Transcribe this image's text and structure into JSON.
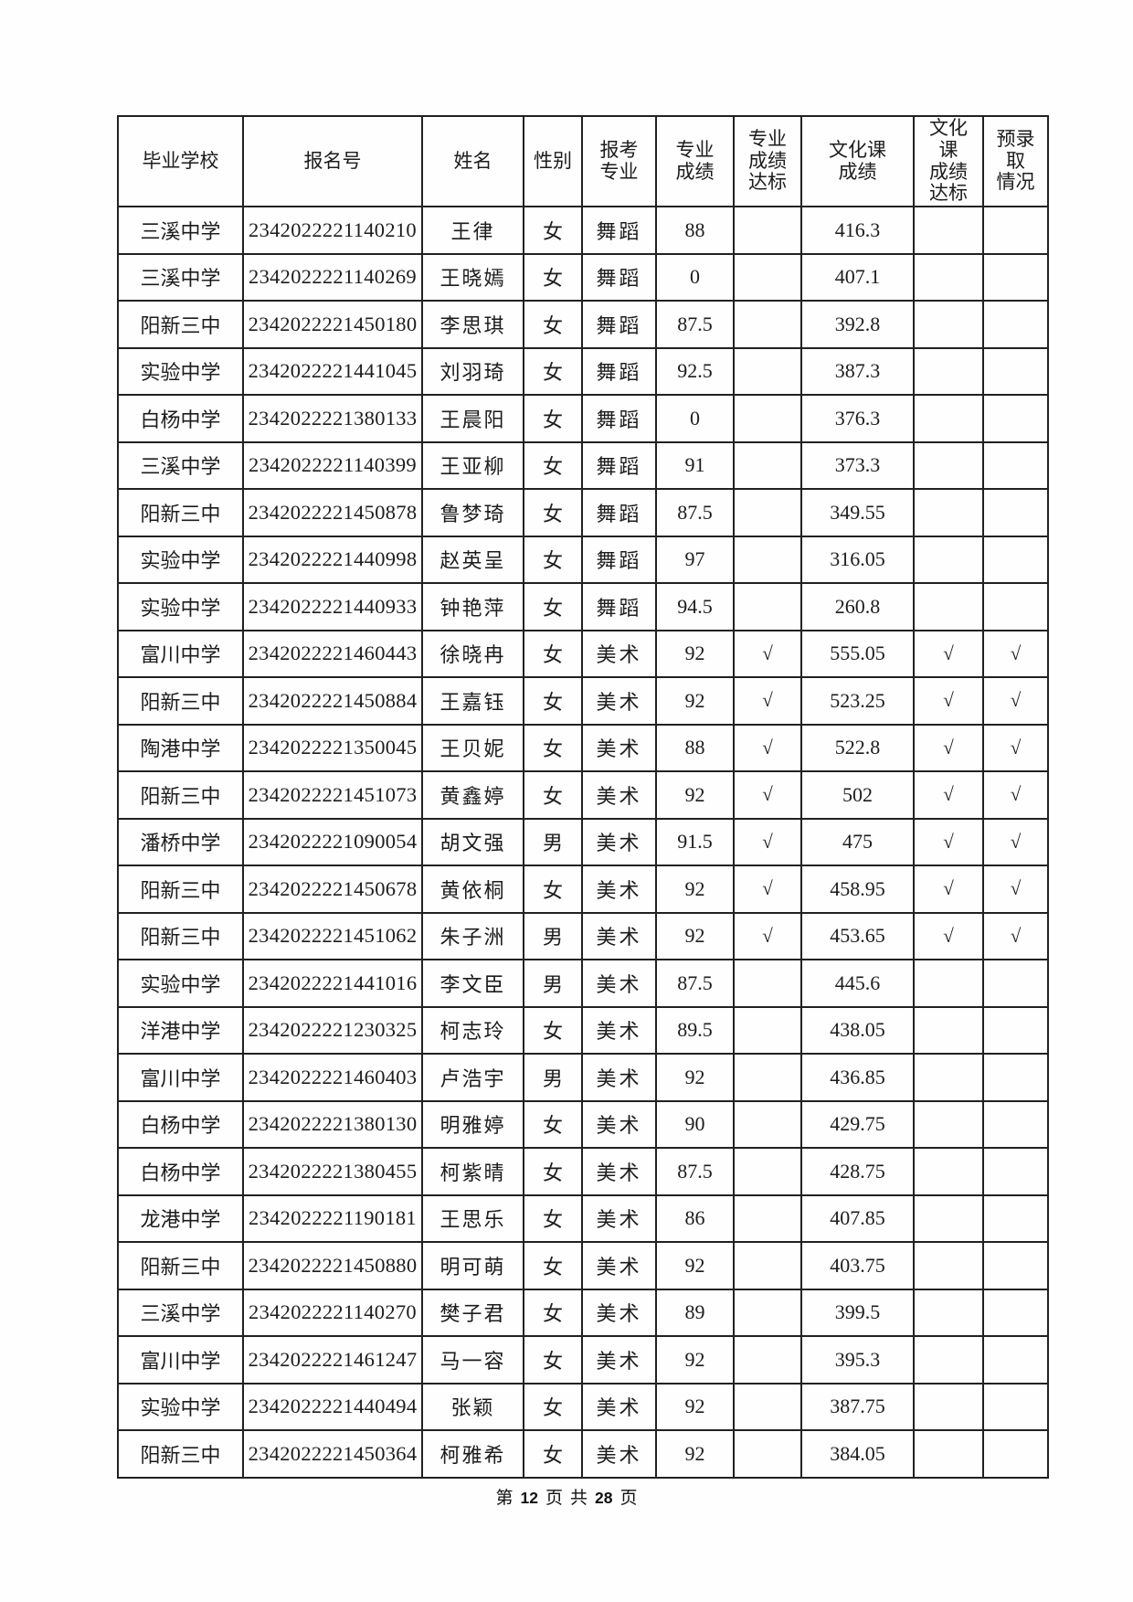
{
  "table": {
    "columns": [
      "毕业学校",
      "报名号",
      "姓名",
      "性别",
      "报考\n专业",
      "专业\n成绩",
      "专业\n成绩\n达标",
      "文化课\n成绩",
      "文化\n课\n成绩\n达标",
      "预录\n取\n情况"
    ],
    "rows": [
      [
        "三溪中学",
        "2342022221140210",
        "王律",
        "女",
        "舞蹈",
        "88",
        "",
        "416.3",
        "",
        ""
      ],
      [
        "三溪中学",
        "2342022221140269",
        "王晓嫣",
        "女",
        "舞蹈",
        "0",
        "",
        "407.1",
        "",
        ""
      ],
      [
        "阳新三中",
        "2342022221450180",
        "李思琪",
        "女",
        "舞蹈",
        "87.5",
        "",
        "392.8",
        "",
        ""
      ],
      [
        "实验中学",
        "2342022221441045",
        "刘羽琦",
        "女",
        "舞蹈",
        "92.5",
        "",
        "387.3",
        "",
        ""
      ],
      [
        "白杨中学",
        "2342022221380133",
        "王晨阳",
        "女",
        "舞蹈",
        "0",
        "",
        "376.3",
        "",
        ""
      ],
      [
        "三溪中学",
        "2342022221140399",
        "王亚柳",
        "女",
        "舞蹈",
        "91",
        "",
        "373.3",
        "",
        ""
      ],
      [
        "阳新三中",
        "2342022221450878",
        "鲁梦琦",
        "女",
        "舞蹈",
        "87.5",
        "",
        "349.55",
        "",
        ""
      ],
      [
        "实验中学",
        "2342022221440998",
        "赵英呈",
        "女",
        "舞蹈",
        "97",
        "",
        "316.05",
        "",
        ""
      ],
      [
        "实验中学",
        "2342022221440933",
        "钟艳萍",
        "女",
        "舞蹈",
        "94.5",
        "",
        "260.8",
        "",
        ""
      ],
      [
        "富川中学",
        "2342022221460443",
        "徐晓冉",
        "女",
        "美术",
        "92",
        "√",
        "555.05",
        "√",
        "√"
      ],
      [
        "阳新三中",
        "2342022221450884",
        "王嘉钰",
        "女",
        "美术",
        "92",
        "√",
        "523.25",
        "√",
        "√"
      ],
      [
        "陶港中学",
        "2342022221350045",
        "王贝妮",
        "女",
        "美术",
        "88",
        "√",
        "522.8",
        "√",
        "√"
      ],
      [
        "阳新三中",
        "2342022221451073",
        "黄鑫婷",
        "女",
        "美术",
        "92",
        "√",
        "502",
        "√",
        "√"
      ],
      [
        "潘桥中学",
        "2342022221090054",
        "胡文强",
        "男",
        "美术",
        "91.5",
        "√",
        "475",
        "√",
        "√"
      ],
      [
        "阳新三中",
        "2342022221450678",
        "黄依桐",
        "女",
        "美术",
        "92",
        "√",
        "458.95",
        "√",
        "√"
      ],
      [
        "阳新三中",
        "2342022221451062",
        "朱子洲",
        "男",
        "美术",
        "92",
        "√",
        "453.65",
        "√",
        "√"
      ],
      [
        "实验中学",
        "2342022221441016",
        "李文臣",
        "男",
        "美术",
        "87.5",
        "",
        "445.6",
        "",
        ""
      ],
      [
        "洋港中学",
        "2342022221230325",
        "柯志玲",
        "女",
        "美术",
        "89.5",
        "",
        "438.05",
        "",
        ""
      ],
      [
        "富川中学",
        "2342022221460403",
        "卢浩宇",
        "男",
        "美术",
        "92",
        "",
        "436.85",
        "",
        ""
      ],
      [
        "白杨中学",
        "2342022221380130",
        "明雅婷",
        "女",
        "美术",
        "90",
        "",
        "429.75",
        "",
        ""
      ],
      [
        "白杨中学",
        "2342022221380455",
        "柯紫晴",
        "女",
        "美术",
        "87.5",
        "",
        "428.75",
        "",
        ""
      ],
      [
        "龙港中学",
        "2342022221190181",
        "王思乐",
        "女",
        "美术",
        "86",
        "",
        "407.85",
        "",
        ""
      ],
      [
        "阳新三中",
        "2342022221450880",
        "明可萌",
        "女",
        "美术",
        "92",
        "",
        "403.75",
        "",
        ""
      ],
      [
        "三溪中学",
        "2342022221140270",
        "樊子君",
        "女",
        "美术",
        "89",
        "",
        "399.5",
        "",
        ""
      ],
      [
        "富川中学",
        "2342022221461247",
        "马一容",
        "女",
        "美术",
        "92",
        "",
        "395.3",
        "",
        ""
      ],
      [
        "实验中学",
        "2342022221440494",
        "张颖",
        "女",
        "美术",
        "92",
        "",
        "387.75",
        "",
        ""
      ],
      [
        "阳新三中",
        "2342022221450364",
        "柯雅希",
        "女",
        "美术",
        "92",
        "",
        "384.05",
        "",
        ""
      ]
    ]
  },
  "footer": {
    "label_di": "第",
    "page_number": "12",
    "label_ye1": "页",
    "label_gong": "共",
    "total_pages": "28",
    "label_ye2": "页"
  }
}
